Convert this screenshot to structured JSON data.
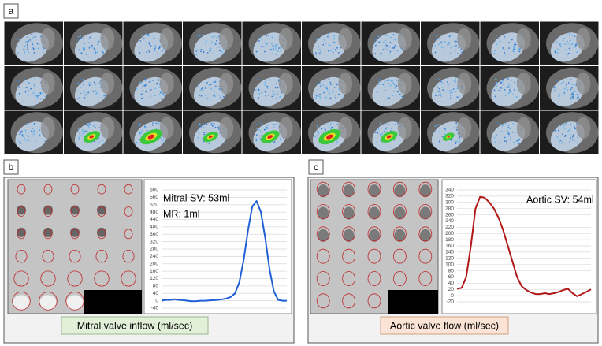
{
  "panel_labels": [
    "a",
    "b",
    "c"
  ],
  "chart_data": [
    {
      "type": "line",
      "color": "#1f5fd6",
      "values": [
        0,
        5,
        5,
        8,
        5,
        3,
        0,
        -3,
        -2,
        0,
        0,
        2,
        3,
        5,
        8,
        12,
        20,
        40,
        100,
        220,
        380,
        510,
        540,
        480,
        340,
        170,
        50,
        5,
        0,
        0
      ],
      "ylim": [
        -40,
        600
      ],
      "yticks": [
        -40,
        0,
        40,
        80,
        120,
        160,
        200,
        240,
        280,
        320,
        360,
        400,
        440,
        480,
        520,
        560,
        600
      ],
      "grid": true,
      "annotations": [
        "Mitral SV: 53ml",
        "MR: 1ml"
      ],
      "caption": "Mitral valve inflow (ml/sec)"
    },
    {
      "type": "line",
      "color": "#b01818",
      "values": [
        22,
        25,
        60,
        160,
        280,
        318,
        315,
        300,
        280,
        250,
        210,
        160,
        110,
        60,
        30,
        18,
        10,
        5,
        5,
        8,
        5,
        8,
        12,
        18,
        22,
        8,
        -2,
        5,
        12,
        20
      ],
      "ylim": [
        -20,
        340
      ],
      "yticks": [
        -20,
        0,
        20,
        40,
        60,
        80,
        100,
        120,
        140,
        160,
        180,
        200,
        220,
        240,
        260,
        280,
        300,
        320,
        340
      ],
      "grid": true,
      "annotations": [
        "Aortic SV: 54ml"
      ],
      "caption": "Aortic valve flow (ml/sec)"
    }
  ]
}
